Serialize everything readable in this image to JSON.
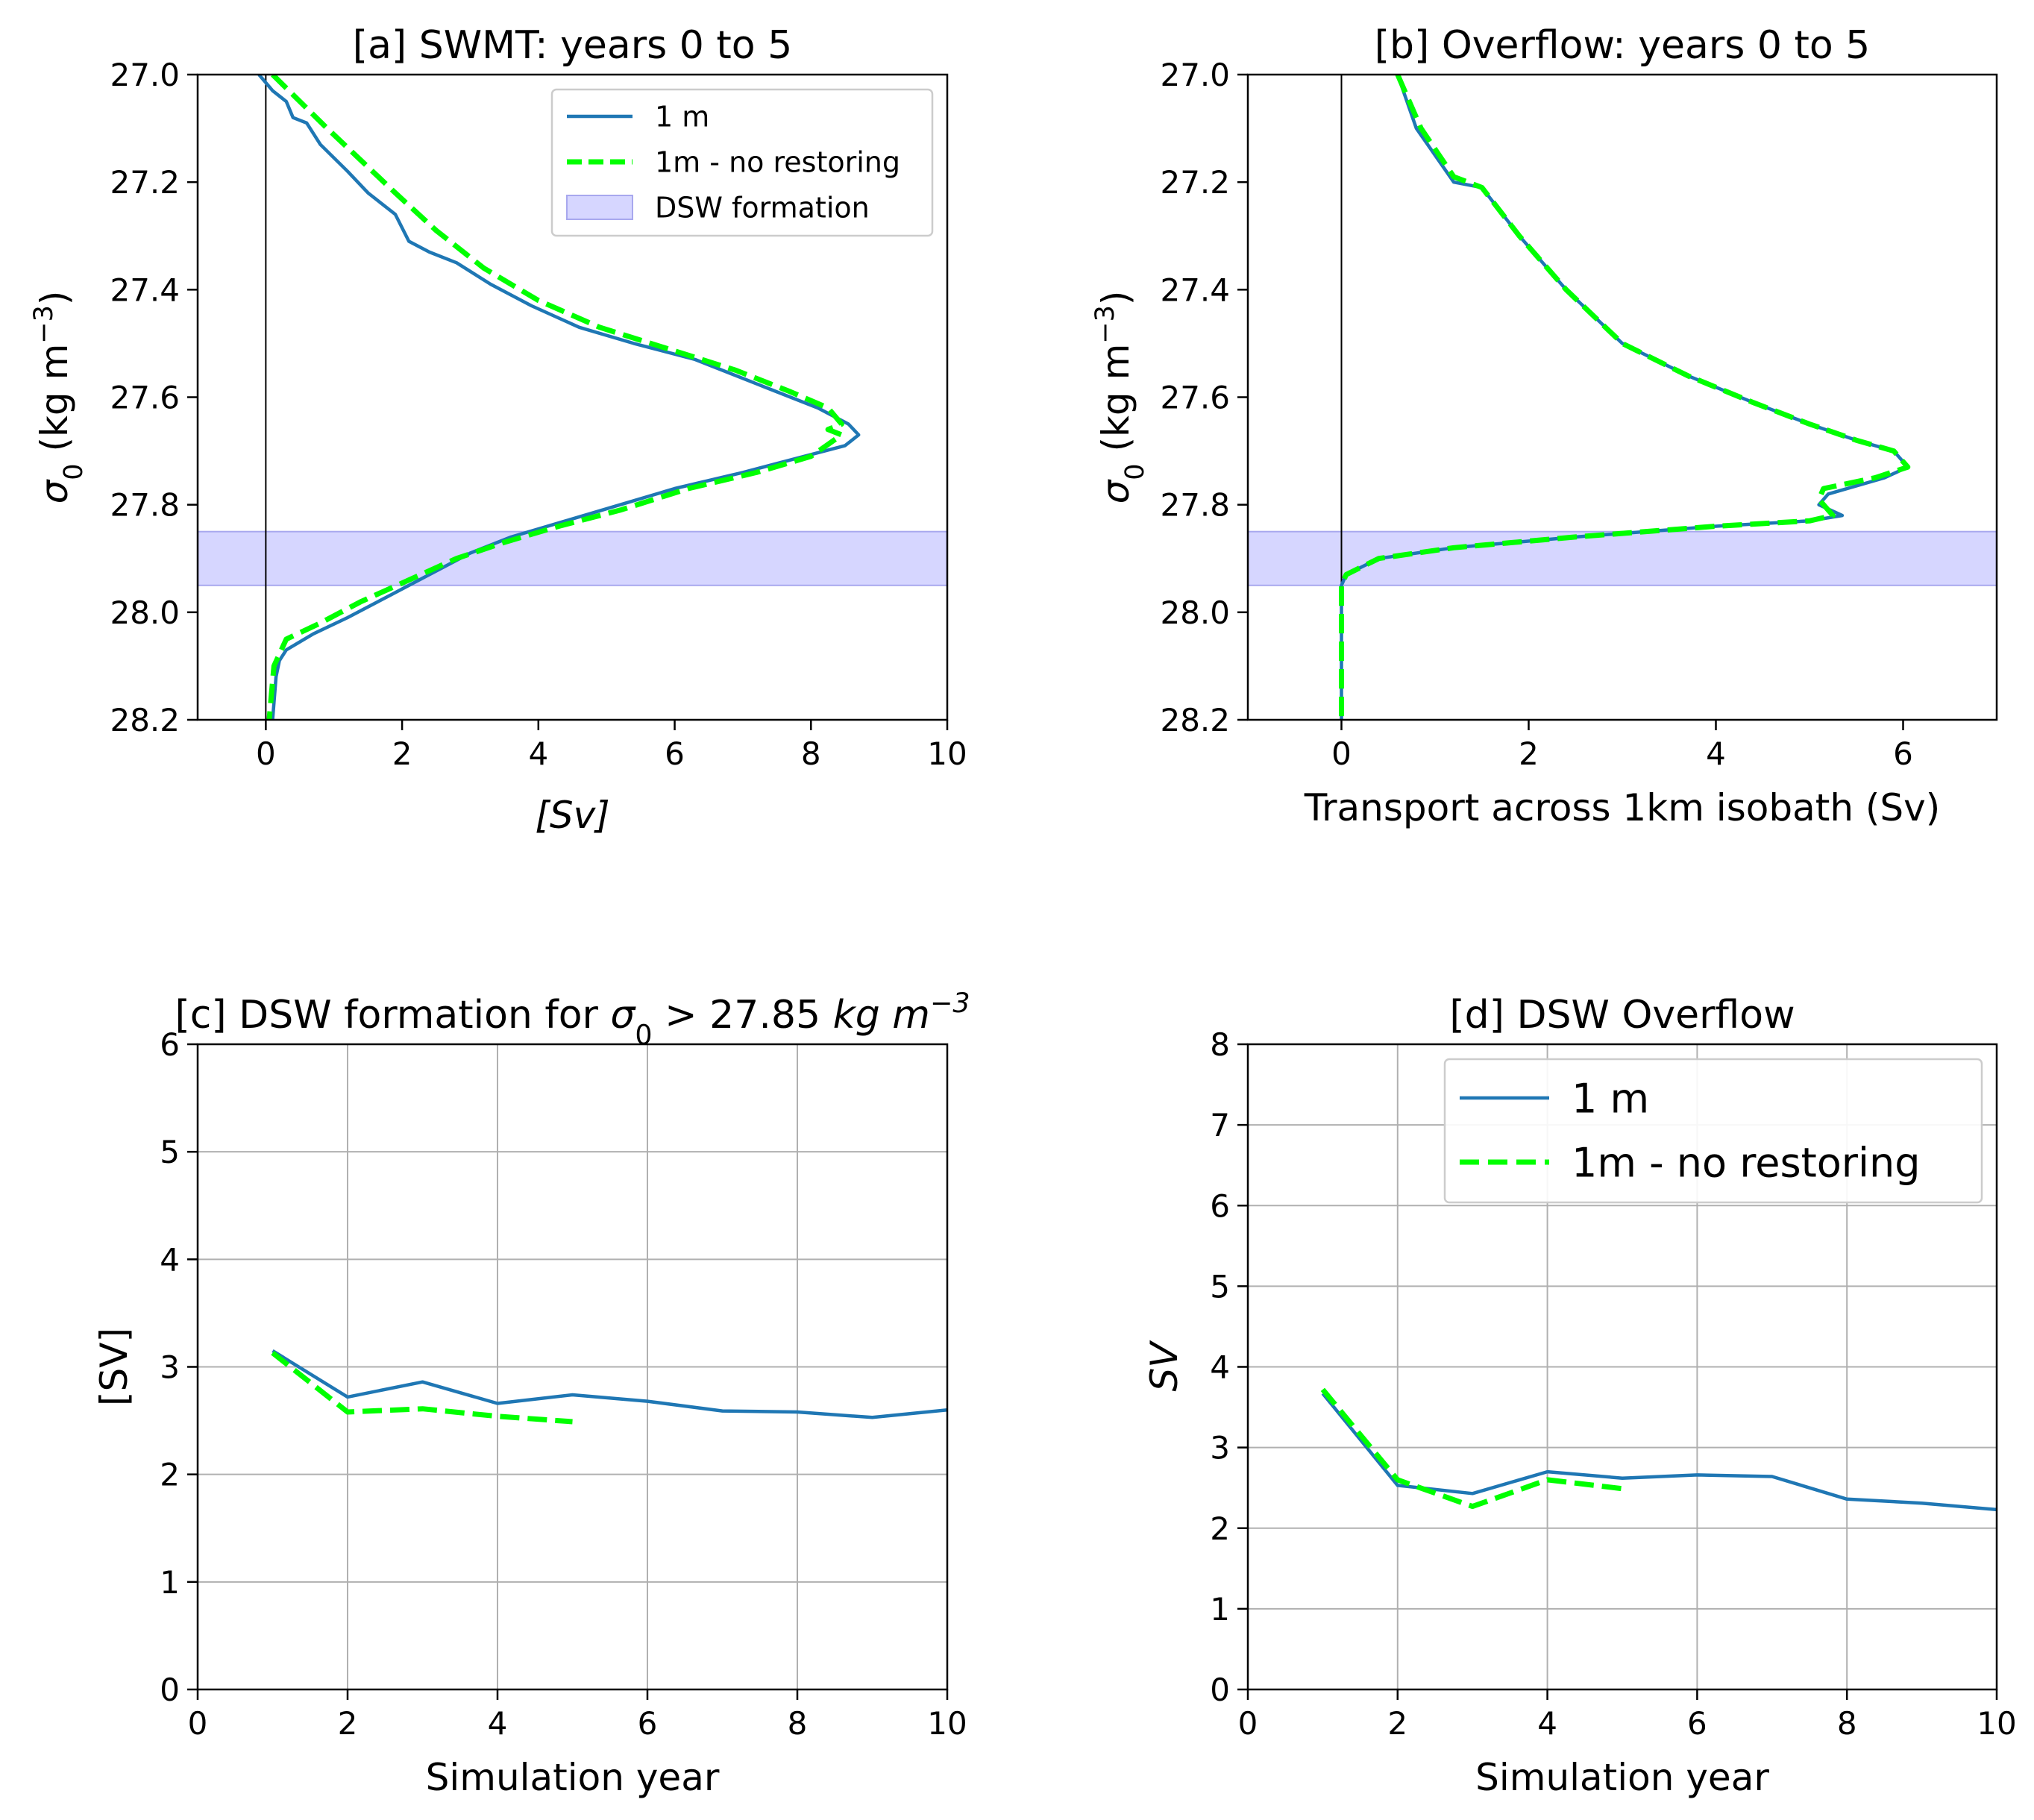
{
  "chart_data": [
    {
      "id": "a",
      "type": "line",
      "title": "[a] SWMT: years 0 to 5",
      "xlabel": "[Sv]",
      "xlabel_italic": true,
      "ylabel": "σ0 (kg m−3)",
      "xlim": [
        -1,
        10
      ],
      "ylim": [
        28.2,
        27.0
      ],
      "y_inverted": true,
      "xticks": [
        0,
        2,
        4,
        6,
        8,
        10
      ],
      "yticks": [
        27.0,
        27.2,
        27.4,
        27.6,
        27.8,
        28.0,
        28.2
      ],
      "ytick_labels": [
        "27.0",
        "27.2",
        "27.4",
        "27.6",
        "27.8",
        "28.0",
        "28.2"
      ],
      "grid": false,
      "zero_line": true,
      "band": {
        "name": "DSW formation",
        "y0": 27.85,
        "y1": 27.95,
        "color": "#d6d6ff"
      },
      "legend_position": "top-right",
      "legend_size": "small",
      "series": [
        {
          "name": "1 m",
          "color": "#1f77b4",
          "style": "solid",
          "x": [
            -0.1,
            0.1,
            0.2,
            0.3,
            0.4,
            0.6,
            0.8,
            1.2,
            1.5,
            1.9,
            2.1,
            2.4,
            2.8,
            3.3,
            3.9,
            4.6,
            5.4,
            6.3,
            7.3,
            8.1,
            8.55,
            8.7,
            8.5,
            7.9,
            7.0,
            6.0,
            5.2,
            4.4,
            3.6,
            3.0,
            2.4,
            1.8,
            1.2,
            0.7,
            0.3,
            0.2,
            0.15,
            0.1
          ],
          "y": [
            27.0,
            27.03,
            27.04,
            27.05,
            27.08,
            27.09,
            27.13,
            27.18,
            27.22,
            27.26,
            27.31,
            27.33,
            27.35,
            27.39,
            27.43,
            27.47,
            27.5,
            27.53,
            27.58,
            27.62,
            27.65,
            27.67,
            27.69,
            27.71,
            27.74,
            27.77,
            27.8,
            27.83,
            27.86,
            27.89,
            27.93,
            27.97,
            28.01,
            28.04,
            28.07,
            28.09,
            28.12,
            28.2
          ]
        },
        {
          "name": "1m - no restoring",
          "color": "#00ff00",
          "style": "dashed",
          "x": [
            0.1,
            0.5,
            0.9,
            1.4,
            1.9,
            2.5,
            3.2,
            4.0,
            4.9,
            5.9,
            6.9,
            7.7,
            8.25,
            8.45,
            8.25,
            8.45,
            8.0,
            7.2,
            6.2,
            5.2,
            4.3,
            3.5,
            2.8,
            2.1,
            1.4,
            0.8,
            0.3,
            0.12,
            0.05
          ],
          "y": [
            27.0,
            27.05,
            27.1,
            27.16,
            27.22,
            27.29,
            27.36,
            27.42,
            27.47,
            27.51,
            27.55,
            27.59,
            27.62,
            27.65,
            27.66,
            27.67,
            27.71,
            27.74,
            27.77,
            27.81,
            27.84,
            27.87,
            27.9,
            27.94,
            27.98,
            28.02,
            28.05,
            28.1,
            28.2
          ]
        }
      ]
    },
    {
      "id": "b",
      "type": "line",
      "title": "[b] Overflow: years 0 to 5",
      "xlabel": "Transport across 1km isobath (Sv)",
      "xlabel_italic": false,
      "ylabel": "σ0 (kg m−3)",
      "xlim": [
        -1,
        7
      ],
      "ylim": [
        28.2,
        27.0
      ],
      "y_inverted": true,
      "xticks": [
        0,
        2,
        4,
        6
      ],
      "yticks": [
        27.0,
        27.2,
        27.4,
        27.6,
        27.8,
        28.0,
        28.2
      ],
      "ytick_labels": [
        "27.0",
        "27.2",
        "27.4",
        "27.6",
        "27.8",
        "28.0",
        "28.2"
      ],
      "grid": false,
      "zero_line": true,
      "band": {
        "name": "DSW formation",
        "y0": 27.85,
        "y1": 27.95,
        "color": "#d6d6ff"
      },
      "series": [
        {
          "name": "1 m",
          "color": "#1f77b4",
          "style": "solid",
          "x": [
            0.6,
            0.8,
            1.2,
            1.5,
            1.9,
            2.4,
            3.0,
            3.7,
            4.4,
            5.0,
            5.5,
            5.9,
            6.05,
            5.8,
            5.2,
            5.1,
            5.35,
            5.0,
            4.0,
            2.5,
            1.2,
            0.4,
            0.05,
            0.0,
            0.0,
            0.0
          ],
          "y": [
            27.0,
            27.1,
            27.2,
            27.21,
            27.3,
            27.4,
            27.5,
            27.56,
            27.61,
            27.65,
            27.68,
            27.7,
            27.73,
            27.75,
            27.78,
            27.8,
            27.82,
            27.83,
            27.84,
            27.86,
            27.88,
            27.9,
            27.93,
            27.95,
            28.05,
            28.2
          ]
        },
        {
          "name": "1m - no restoring",
          "color": "#00ff00",
          "style": "dashed",
          "x": [
            0.6,
            0.85,
            1.2,
            1.5,
            1.9,
            2.4,
            3.0,
            3.7,
            4.4,
            5.0,
            5.5,
            5.9,
            6.05,
            5.7,
            5.15,
            5.1,
            5.25,
            5.0,
            4.0,
            2.5,
            1.2,
            0.4,
            0.05,
            0.0,
            0.0,
            0.0
          ],
          "y": [
            27.0,
            27.1,
            27.19,
            27.21,
            27.3,
            27.4,
            27.5,
            27.56,
            27.61,
            27.65,
            27.68,
            27.7,
            27.73,
            27.75,
            27.77,
            27.79,
            27.82,
            27.83,
            27.84,
            27.86,
            27.88,
            27.9,
            27.93,
            27.95,
            28.05,
            28.2
          ]
        }
      ]
    },
    {
      "id": "c",
      "type": "line",
      "title": "[c] DSW formation for σ0 > 27.85 kg m−3",
      "xlabel": "Simulation year",
      "xlabel_italic": false,
      "ylabel": "[SV]",
      "xlim": [
        0,
        10
      ],
      "ylim": [
        0,
        6
      ],
      "y_inverted": false,
      "xticks": [
        0,
        2,
        4,
        6,
        8,
        10
      ],
      "yticks": [
        0,
        1,
        2,
        3,
        4,
        5,
        6
      ],
      "ytick_labels": [
        "0",
        "1",
        "2",
        "3",
        "4",
        "5",
        "6"
      ],
      "grid": true,
      "zero_line": false,
      "series": [
        {
          "name": "1 m",
          "color": "#1f77b4",
          "style": "solid",
          "x": [
            1,
            2,
            3,
            4,
            5,
            6,
            7,
            8,
            9,
            10
          ],
          "y": [
            3.15,
            2.72,
            2.86,
            2.66,
            2.74,
            2.68,
            2.59,
            2.58,
            2.53,
            2.6
          ]
        },
        {
          "name": "1m - no restoring",
          "color": "#00ff00",
          "style": "dashed",
          "x": [
            1,
            2,
            3,
            4,
            5
          ],
          "y": [
            3.13,
            2.58,
            2.61,
            2.54,
            2.49
          ]
        }
      ]
    },
    {
      "id": "d",
      "type": "line",
      "title": "[d] DSW Overflow",
      "xlabel": "Simulation year",
      "xlabel_italic": false,
      "ylabel": "SV",
      "ylabel_italic": true,
      "xlim": [
        0,
        10
      ],
      "ylim": [
        0,
        8
      ],
      "y_inverted": false,
      "xticks": [
        0,
        2,
        4,
        6,
        8,
        10
      ],
      "yticks": [
        0,
        1,
        2,
        3,
        4,
        5,
        6,
        7,
        8
      ],
      "ytick_labels": [
        "0",
        "1",
        "2",
        "3",
        "4",
        "5",
        "6",
        "7",
        "8"
      ],
      "grid": true,
      "zero_line": false,
      "legend_position": "top-right",
      "legend_size": "large",
      "series": [
        {
          "name": "1 m",
          "color": "#1f77b4",
          "style": "solid",
          "x": [
            1,
            2,
            3,
            4,
            5,
            6,
            7,
            8,
            9,
            10
          ],
          "y": [
            3.67,
            2.53,
            2.43,
            2.7,
            2.62,
            2.66,
            2.64,
            2.36,
            2.31,
            2.23
          ]
        },
        {
          "name": "1m - no restoring",
          "color": "#00ff00",
          "style": "dashed",
          "x": [
            1,
            2,
            3,
            4,
            5
          ],
          "y": [
            3.72,
            2.6,
            2.27,
            2.6,
            2.49
          ]
        }
      ]
    }
  ]
}
